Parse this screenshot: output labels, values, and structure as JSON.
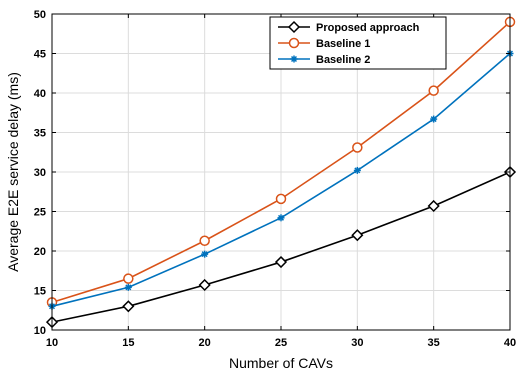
{
  "chart_data": {
    "type": "line",
    "xlabel": "Number of CAVs",
    "ylabel": "Average E2E service delay (ms)",
    "x": [
      10,
      15,
      20,
      25,
      30,
      35,
      40
    ],
    "xlim": [
      10,
      40
    ],
    "ylim": [
      10,
      50
    ],
    "xticks": [
      10,
      15,
      20,
      25,
      30,
      35,
      40
    ],
    "yticks": [
      10,
      15,
      20,
      25,
      30,
      35,
      40,
      45,
      50
    ],
    "grid": true,
    "legend": "top-right",
    "series": [
      {
        "name": "Proposed approach",
        "values": [
          11.0,
          13.0,
          15.7,
          18.6,
          22.0,
          25.7,
          30.0
        ],
        "color": "#000000",
        "marker": "diamond"
      },
      {
        "name": "Baseline 1",
        "values": [
          13.5,
          16.5,
          21.3,
          26.6,
          33.1,
          40.3,
          49.0
        ],
        "color": "#d95319",
        "marker": "circle"
      },
      {
        "name": "Baseline 2",
        "values": [
          13.0,
          15.4,
          19.6,
          24.2,
          30.2,
          36.7,
          45.0
        ],
        "color": "#0072bd",
        "marker": "star"
      }
    ]
  }
}
